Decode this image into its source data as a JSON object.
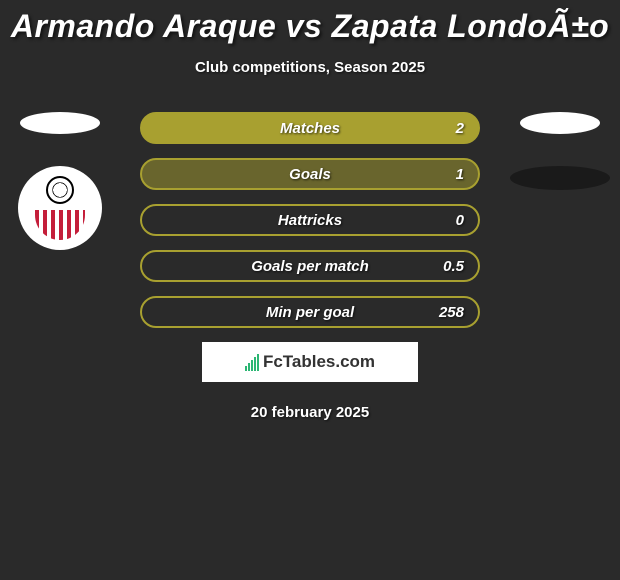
{
  "title": "Armando Araque vs Zapata LondoÃ±o",
  "subtitle": "Club competitions, Season 2025",
  "stats": [
    {
      "label": "Matches",
      "value": "2",
      "border": "#a8a030",
      "fill": "#a8a030"
    },
    {
      "label": "Goals",
      "value": "1",
      "border": "#a8a030",
      "fill": "rgba(168,160,48,0.5)"
    },
    {
      "label": "Hattricks",
      "value": "0",
      "border": "#a8a030",
      "fill": "transparent"
    },
    {
      "label": "Goals per match",
      "value": "0.5",
      "border": "#a8a030",
      "fill": "transparent"
    },
    {
      "label": "Min per goal",
      "value": "258",
      "border": "#a8a030",
      "fill": "transparent"
    }
  ],
  "logo_text": "FcTables.com",
  "date": "20 february 2025",
  "colors": {
    "background": "#2a2a2a",
    "accent": "#a8a030",
    "text": "#ffffff"
  }
}
